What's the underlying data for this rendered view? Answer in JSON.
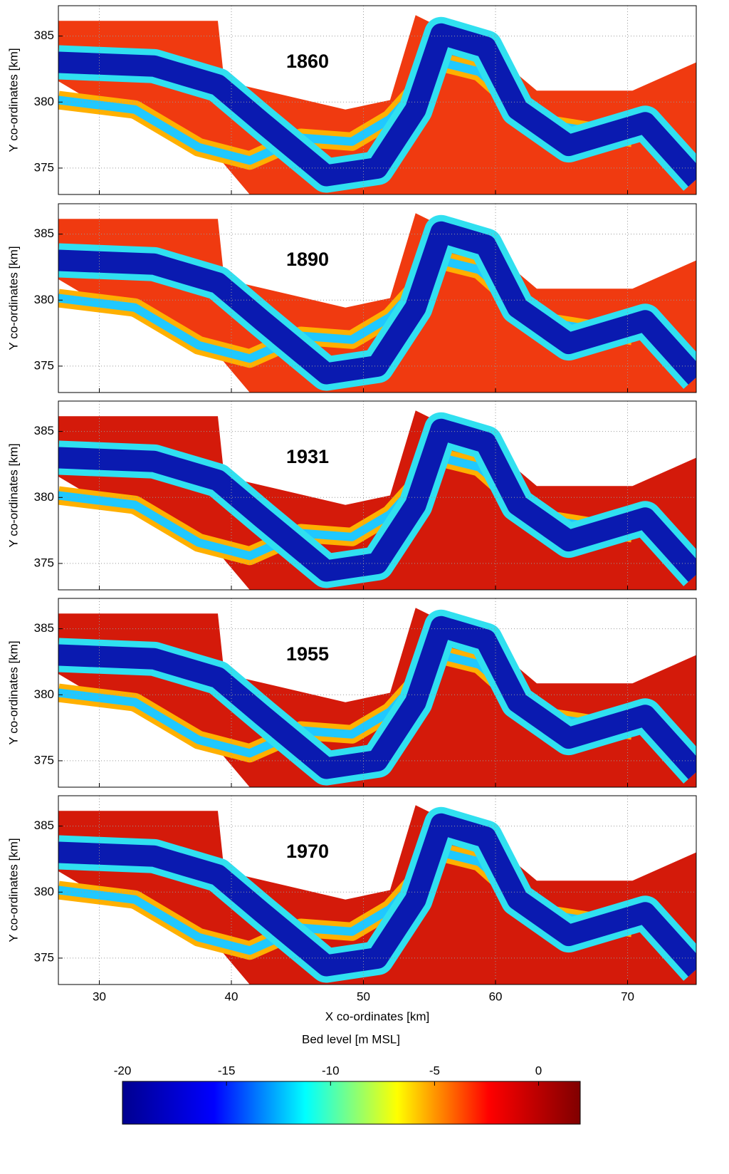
{
  "chart_data": [
    {
      "type": "heatmap",
      "title": "1860",
      "ylabel": "Y co-ordinates [km]",
      "xlim": [
        26.9,
        75.2
      ],
      "ylim": [
        373,
        387.3
      ],
      "xticks": [
        30,
        40,
        50,
        60,
        70
      ],
      "yticks": [
        375,
        380,
        385
      ],
      "grid": true
    },
    {
      "type": "heatmap",
      "title": "1890",
      "ylabel": "Y co-ordinates [km]",
      "xlim": [
        26.9,
        75.2
      ],
      "ylim": [
        373,
        387.3
      ],
      "xticks": [
        30,
        40,
        50,
        60,
        70
      ],
      "yticks": [
        375,
        380,
        385
      ],
      "grid": true
    },
    {
      "type": "heatmap",
      "title": "1931",
      "ylabel": "Y co-ordinates [km]",
      "xlim": [
        26.9,
        75.2
      ],
      "ylim": [
        373,
        387.3
      ],
      "xticks": [
        30,
        40,
        50,
        60,
        70
      ],
      "yticks": [
        375,
        380,
        385
      ],
      "grid": true
    },
    {
      "type": "heatmap",
      "title": "1955",
      "ylabel": "Y co-ordinates [km]",
      "xlim": [
        26.9,
        75.2
      ],
      "ylim": [
        373,
        387.3
      ],
      "xticks": [
        30,
        40,
        50,
        60,
        70
      ],
      "yticks": [
        375,
        380,
        385
      ],
      "grid": true
    },
    {
      "type": "heatmap",
      "title": "1970",
      "ylabel": "Y co-ordinates [km]",
      "xlabel": "X co-ordinates [km]",
      "xlim": [
        26.9,
        75.2
      ],
      "ylim": [
        373,
        387.3
      ],
      "xticks": [
        30,
        40,
        50,
        60,
        70
      ],
      "yticks": [
        375,
        380,
        385
      ],
      "grid": true
    },
    {
      "type": "colorbar",
      "title": "Bed level [m MSL]",
      "xlim": [
        -20,
        2
      ],
      "xticks": [
        -20,
        -15,
        -10,
        -5,
        0
      ],
      "colors": [
        "#00008f",
        "#0000ff",
        "#00ffff",
        "#ffff00",
        "#ff0000",
        "#800000"
      ]
    }
  ]
}
